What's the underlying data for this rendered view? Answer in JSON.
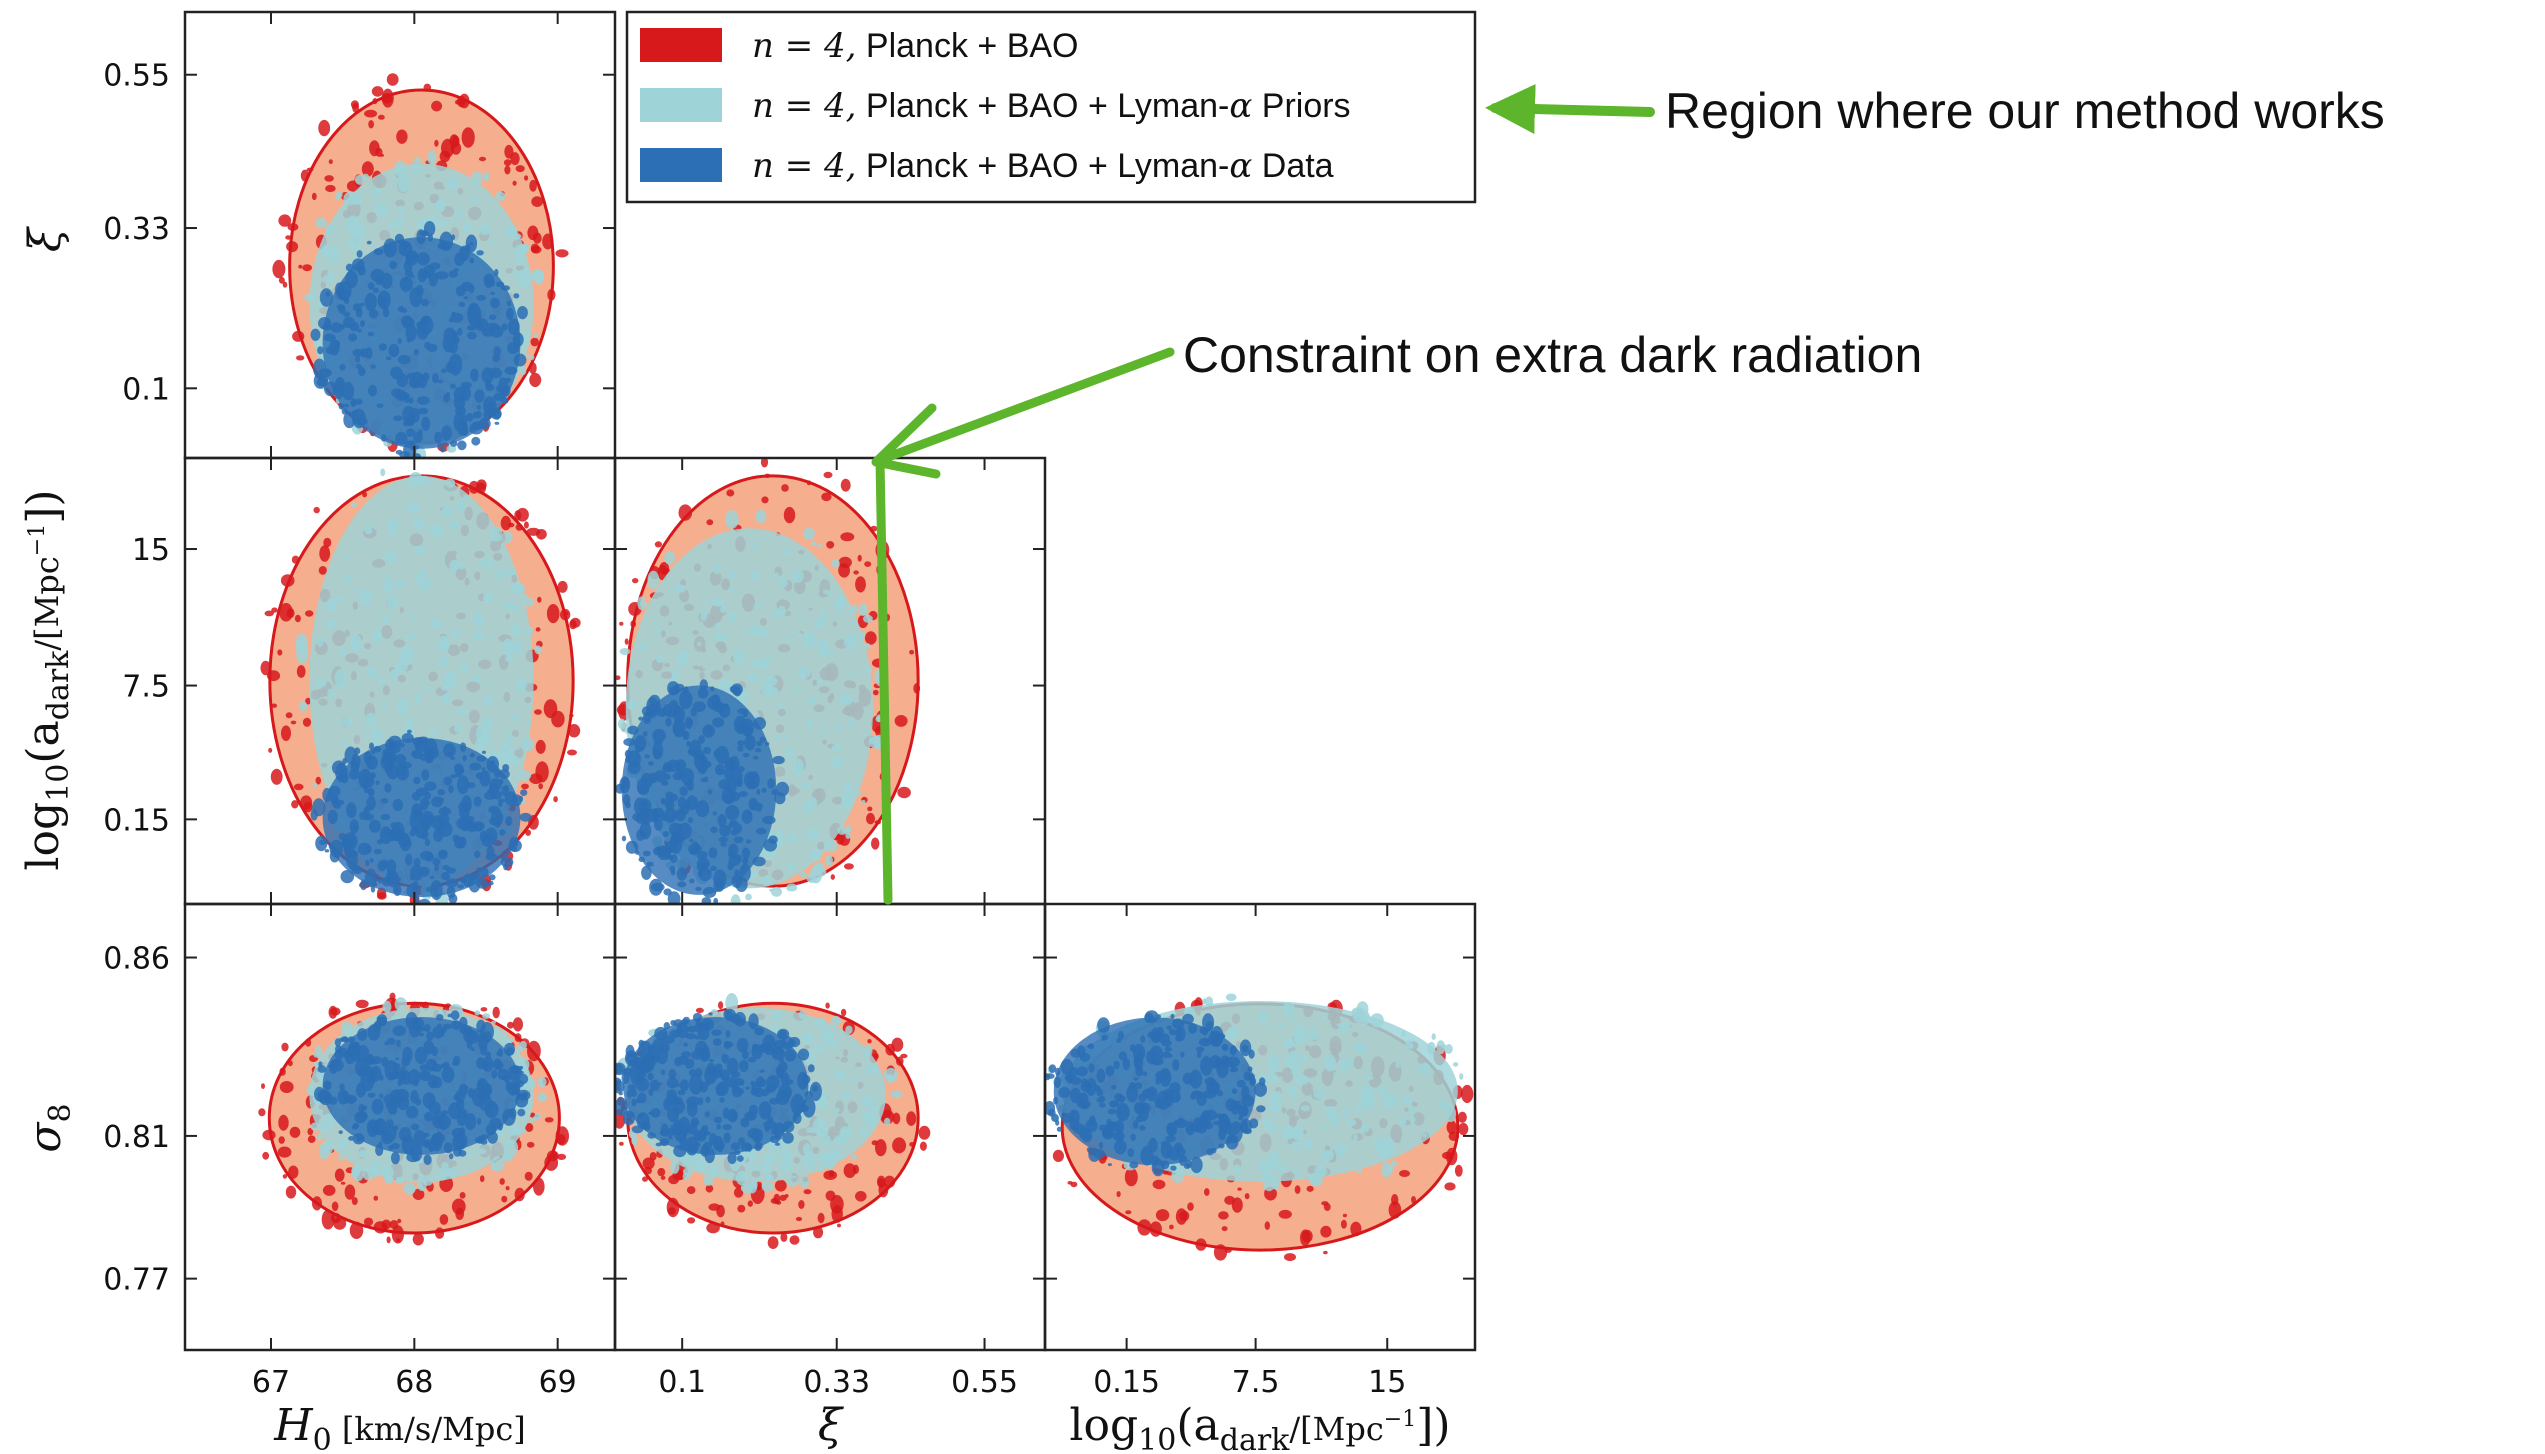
{
  "chart_data": {
    "type": "scatter",
    "kind": "corner-plot (triangle plot of 2D posterior contours)",
    "series": [
      {
        "name": "n = 4, Planck + BAO",
        "color": "#d7191c",
        "fill": "#f4a582"
      },
      {
        "name": "n = 4, Planck + BAO + Lyman-α Priors",
        "color": "#9ed4d8",
        "fill": "#9ed4d8"
      },
      {
        "name": "n = 4, Planck + BAO + Lyman-α Data",
        "color": "#2c6fb4",
        "fill": "#2c6fb4"
      }
    ],
    "axes": {
      "H0": {
        "label": "H₀ [km/s/Mpc]",
        "range": [
          66.4,
          69.4
        ],
        "ticks": [
          67,
          68,
          69
        ]
      },
      "xi": {
        "label": "ξ",
        "range": [
          0.0,
          0.64
        ],
        "ticks": [
          0.1,
          0.33,
          0.55
        ]
      },
      "logadark": {
        "label": "log₁₀(a_dark/[Mpc⁻¹])",
        "range": [
          -4.5,
          20.0
        ],
        "ticks": [
          0.15,
          7.5,
          15
        ]
      },
      "sigma8": {
        "label": "σ₈",
        "range": [
          0.75,
          0.875
        ],
        "ticks": [
          0.77,
          0.81,
          0.86
        ]
      }
    },
    "panels": [
      {
        "row": "xi",
        "col": "H0",
        "regions": [
          {
            "series": 0,
            "x": [
              67.05,
              69.05
            ],
            "y": [
              0.0,
              0.55
            ]
          },
          {
            "series": 1,
            "x": [
              67.2,
              68.9
            ],
            "y": [
              0.0,
              0.44
            ]
          },
          {
            "series": 2,
            "x": [
              67.3,
              68.8
            ],
            "y": [
              0.0,
              0.33
            ]
          }
        ]
      },
      {
        "row": "logadark",
        "col": "H0",
        "regions": [
          {
            "series": 0,
            "x": [
              66.9,
              69.2
            ],
            "y": [
              -4.5,
              20.0
            ]
          },
          {
            "series": 1,
            "x": [
              67.2,
              68.9
            ],
            "y": [
              -4.5,
              20.0
            ]
          },
          {
            "series": 2,
            "x": [
              67.3,
              68.8
            ],
            "y": [
              -4.5,
              5.0
            ]
          }
        ]
      },
      {
        "row": "logadark",
        "col": "xi",
        "regions": [
          {
            "series": 0,
            "x": [
              0.0,
              0.47
            ],
            "y": [
              -4.5,
              20.0
            ]
          },
          {
            "series": 1,
            "x": [
              0.0,
              0.4
            ],
            "y": [
              -4.5,
              17.0
            ]
          },
          {
            "series": 2,
            "x": [
              0.0,
              0.25
            ],
            "y": [
              -4.5,
              8.0
            ]
          }
        ]
      },
      {
        "row": "sigma8",
        "col": "H0",
        "regions": [
          {
            "series": 0,
            "x": [
              66.9,
              69.1
            ],
            "y": [
              0.78,
              0.85
            ]
          },
          {
            "series": 1,
            "x": [
              67.2,
              68.9
            ],
            "y": [
              0.795,
              0.848
            ]
          },
          {
            "series": 2,
            "x": [
              67.3,
              68.8
            ],
            "y": [
              0.803,
              0.845
            ]
          }
        ]
      },
      {
        "row": "sigma8",
        "col": "xi",
        "regions": [
          {
            "series": 0,
            "x": [
              0.0,
              0.47
            ],
            "y": [
              0.78,
              0.85
            ]
          },
          {
            "series": 1,
            "x": [
              0.0,
              0.42
            ],
            "y": [
              0.795,
              0.848
            ]
          },
          {
            "series": 2,
            "x": [
              0.0,
              0.3
            ],
            "y": [
              0.803,
              0.845
            ]
          }
        ]
      },
      {
        "row": "sigma8",
        "col": "logadark",
        "regions": [
          {
            "series": 0,
            "x": [
              -4.5,
              20.0
            ],
            "y": [
              0.775,
              0.85
            ]
          },
          {
            "series": 1,
            "x": [
              -4.5,
              20.0
            ],
            "y": [
              0.795,
              0.85
            ]
          },
          {
            "series": 2,
            "x": [
              -4.5,
              8.0
            ],
            "y": [
              0.8,
              0.845
            ]
          }
        ]
      }
    ],
    "legend_position": "top-center",
    "grid": false
  },
  "legend": [
    {
      "prefix": "n = 4,",
      "label": " Planck + BAO"
    },
    {
      "prefix": "n = 4,",
      "label": " Planck + BAO + Lyman-",
      "greek": "α",
      "suffix": " Priors"
    },
    {
      "prefix": "n = 4,",
      "label": " Planck + BAO + Lyman-",
      "greek": "α",
      "suffix": " Data"
    }
  ],
  "annotations": {
    "region": "Region where our method works",
    "constraint": "Constraint on extra dark radiation",
    "arrow_color": "#5db52b"
  },
  "labels": {
    "xi_row": "ξ",
    "logadark_row_main": "log",
    "logadark_row_sub": "10",
    "logadark_row_rest": "(a",
    "logadark_row_dark": "dark",
    "logadark_row_unit": "/[Mpc",
    "logadark_row_exp": "−1",
    "logadark_row_end": "])",
    "sigma8_row": "σ",
    "sigma8_sub": "8",
    "H0_col": "H",
    "H0_sub": "0",
    "H0_unit": " [km/s/Mpc]",
    "xi_col": "ξ"
  },
  "ticks": {
    "xi": [
      "0.55",
      "0.33",
      "0.1"
    ],
    "logadark": [
      "15",
      "7.5",
      "0.15"
    ],
    "sigma8": [
      "0.86",
      "0.81",
      "0.77"
    ],
    "H0": [
      "67",
      "68",
      "69"
    ],
    "xi_x": [
      "0.1",
      "0.33",
      "0.55"
    ],
    "logadark_x": [
      "0.15",
      "7.5",
      "15"
    ]
  }
}
